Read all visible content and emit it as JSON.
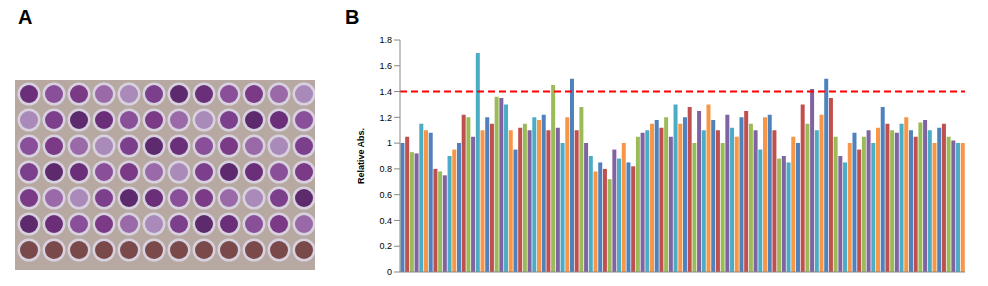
{
  "panel_labels": [
    "A",
    "B"
  ],
  "chart_data": {
    "type": "bar",
    "ylabel": "Relative Abs.",
    "categories": [
      null,
      null,
      null,
      null,
      null,
      null,
      null,
      null,
      null,
      null,
      null,
      null,
      null,
      null,
      null,
      null,
      null,
      null,
      null,
      null,
      null,
      null,
      null,
      null,
      null,
      null,
      null,
      null,
      null,
      null,
      null,
      null,
      null,
      null,
      null,
      null,
      null,
      null,
      null,
      null,
      null,
      null,
      null,
      null,
      null,
      null,
      null,
      null,
      null,
      null,
      null,
      null,
      null,
      null,
      null,
      null,
      null,
      null,
      null,
      null,
      null,
      null,
      null,
      null,
      null,
      null,
      null,
      null,
      null,
      null,
      null,
      null,
      null,
      null,
      null,
      null,
      null,
      null,
      null,
      null,
      null,
      null,
      null,
      null,
      null,
      null,
      null,
      null,
      null,
      null,
      null,
      null,
      null,
      null,
      null,
      null,
      null,
      null,
      null,
      null,
      null,
      null,
      null,
      null,
      null,
      null,
      null,
      null,
      null,
      null,
      null,
      null,
      null,
      null,
      null,
      null,
      null,
      null,
      null,
      null
    ],
    "values": [
      1.0,
      1.05,
      0.93,
      0.92,
      1.15,
      1.1,
      1.08,
      0.8,
      0.78,
      0.75,
      0.9,
      0.95,
      1.0,
      1.22,
      1.2,
      1.05,
      1.7,
      1.1,
      1.2,
      1.15,
      1.36,
      1.35,
      1.3,
      1.1,
      0.95,
      1.12,
      1.15,
      1.1,
      1.2,
      1.18,
      1.22,
      1.1,
      1.45,
      1.12,
      1.0,
      1.2,
      1.5,
      1.1,
      1.28,
      1.0,
      0.9,
      0.78,
      0.85,
      0.8,
      0.72,
      0.95,
      0.88,
      1.0,
      0.85,
      0.82,
      1.05,
      1.08,
      1.1,
      1.15,
      1.18,
      1.12,
      1.2,
      1.05,
      1.3,
      1.15,
      1.2,
      1.28,
      1.0,
      1.25,
      1.1,
      1.3,
      1.18,
      1.1,
      1.0,
      1.22,
      1.12,
      1.05,
      1.2,
      1.25,
      1.15,
      1.1,
      0.95,
      1.2,
      1.22,
      1.1,
      0.88,
      0.9,
      0.85,
      1.05,
      1.0,
      1.3,
      1.15,
      1.42,
      1.1,
      1.22,
      1.5,
      1.35,
      1.05,
      0.9,
      0.85,
      1.0,
      1.08,
      0.95,
      1.05,
      1.1,
      1.0,
      1.12,
      1.28,
      1.15,
      1.1,
      1.08,
      1.15,
      1.2,
      1.1,
      1.05,
      1.16,
      1.18,
      1.1,
      1.0,
      1.12,
      1.15,
      1.05,
      1.02,
      1.0,
      1.0
    ],
    "colors": [
      "#4f81bd",
      "#c0504d",
      "#9bbb59",
      "#8064a2",
      "#4bacc6",
      "#f79646",
      "#4f81bd",
      "#c0504d",
      "#9bbb59",
      "#8064a2",
      "#4bacc6",
      "#f79646",
      "#4f81bd",
      "#c0504d",
      "#9bbb59",
      "#8064a2",
      "#4bacc6",
      "#f79646",
      "#4f81bd",
      "#c0504d",
      "#9bbb59",
      "#8064a2",
      "#4bacc6",
      "#f79646",
      "#4f81bd",
      "#c0504d",
      "#9bbb59",
      "#8064a2",
      "#4bacc6",
      "#f79646",
      "#4f81bd",
      "#c0504d",
      "#9bbb59",
      "#8064a2",
      "#4bacc6",
      "#f79646",
      "#4f81bd",
      "#c0504d",
      "#9bbb59",
      "#8064a2",
      "#4bacc6",
      "#f79646",
      "#4f81bd",
      "#c0504d",
      "#9bbb59",
      "#8064a2",
      "#4bacc6",
      "#f79646",
      "#4f81bd",
      "#c0504d",
      "#9bbb59",
      "#8064a2",
      "#4bacc6",
      "#f79646",
      "#4f81bd",
      "#c0504d",
      "#9bbb59",
      "#8064a2",
      "#4bacc6",
      "#f79646",
      "#4f81bd",
      "#c0504d",
      "#9bbb59",
      "#8064a2",
      "#4bacc6",
      "#f79646",
      "#4f81bd",
      "#c0504d",
      "#9bbb59",
      "#8064a2",
      "#4bacc6",
      "#f79646",
      "#4f81bd",
      "#c0504d",
      "#9bbb59",
      "#8064a2",
      "#4bacc6",
      "#f79646",
      "#4f81bd",
      "#c0504d",
      "#9bbb59",
      "#8064a2",
      "#4bacc6",
      "#f79646",
      "#4f81bd",
      "#c0504d",
      "#9bbb59",
      "#8064a2",
      "#4bacc6",
      "#f79646",
      "#4f81bd",
      "#c0504d",
      "#9bbb59",
      "#8064a2",
      "#4bacc6",
      "#f79646",
      "#4f81bd",
      "#c0504d",
      "#9bbb59",
      "#8064a2",
      "#4bacc6",
      "#f79646",
      "#4f81bd",
      "#c0504d",
      "#9bbb59",
      "#8064a2",
      "#4bacc6",
      "#f79646",
      "#4f81bd",
      "#c0504d",
      "#9bbb59",
      "#8064a2",
      "#4bacc6",
      "#f79646",
      "#4f81bd",
      "#c0504d",
      "#9bbb59",
      "#8064a2",
      "#4bacc6",
      "#f79646"
    ],
    "ylim": [
      0,
      1.8
    ],
    "yticks": [
      0,
      0.2,
      0.4,
      0.6,
      0.8,
      1,
      1.2,
      1.4,
      1.6,
      1.8
    ],
    "tick_labels": "y",
    "grid": false,
    "reference_line": {
      "y": 1.4,
      "color": "#ff0000",
      "line_style": "dashed"
    }
  }
}
